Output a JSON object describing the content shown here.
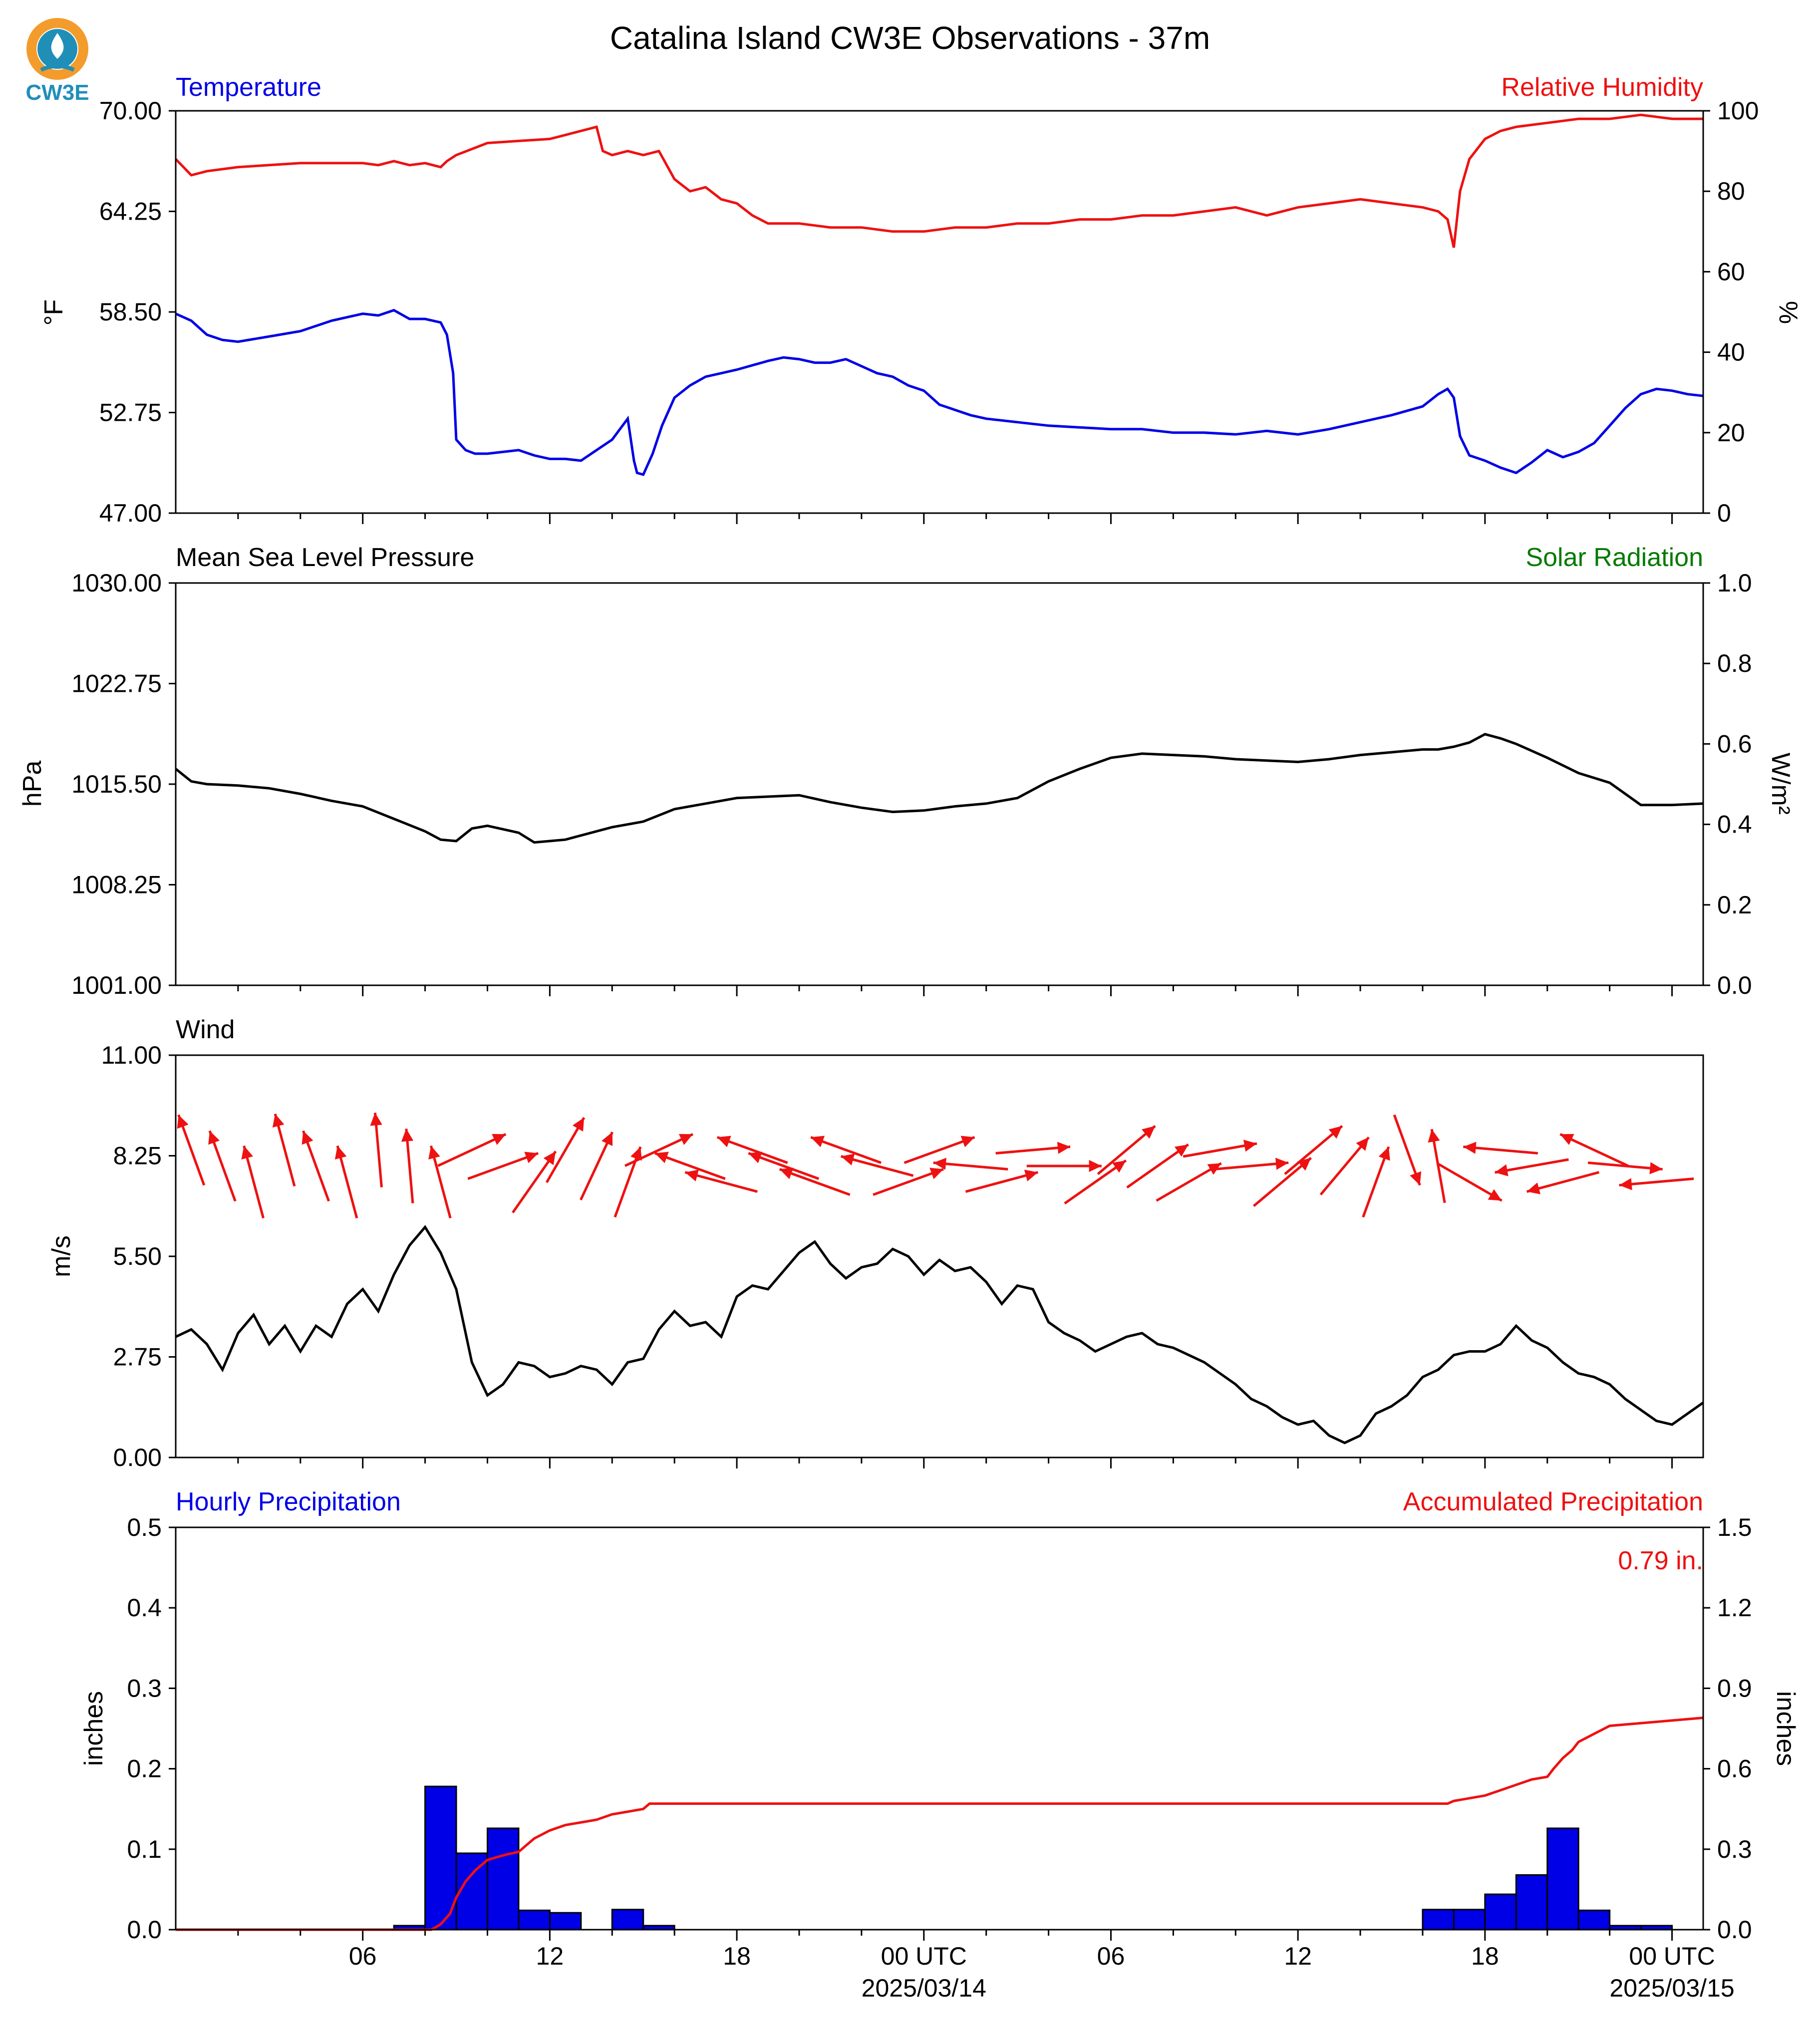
{
  "figure": {
    "title": "Catalina Island CW3E Observations - 37m",
    "logo_text": "CW3E",
    "colors": {
      "blue": "#0000e6",
      "red": "#ee1111",
      "green": "#007a00",
      "black": "#000000",
      "logo_orange": "#f39c2b",
      "logo_teal": "#1f8fb8"
    }
  },
  "time_axis": {
    "major_ticks": [
      {
        "h": 6,
        "label": "06",
        "sub": ""
      },
      {
        "h": 12,
        "label": "12",
        "sub": ""
      },
      {
        "h": 18,
        "label": "18",
        "sub": ""
      },
      {
        "h": 24,
        "label": "00 UTC",
        "sub": "2025/03/14"
      },
      {
        "h": 30,
        "label": "06",
        "sub": ""
      },
      {
        "h": 36,
        "label": "12",
        "sub": ""
      },
      {
        "h": 42,
        "label": "18",
        "sub": ""
      },
      {
        "h": 48,
        "label": "00 UTC",
        "sub": "2025/03/15"
      }
    ]
  },
  "chart_data": [
    {
      "type": "line",
      "id": "temp_rh",
      "title_left": "Temperature",
      "title_right": "Relative Humidity",
      "ylabel_left": "°F",
      "ylabel_right": "%",
      "ylim_left": [
        47.0,
        70.0
      ],
      "ylim_right": [
        0,
        100
      ],
      "yticks_left": [
        "47.00",
        "52.75",
        "58.50",
        "64.25",
        "70.00"
      ],
      "yticks_right": [
        "0",
        "20",
        "40",
        "60",
        "80",
        "100"
      ],
      "series": [
        {
          "name": "Temperature",
          "axis": "left",
          "color": "#0000e6",
          "x": [
            0,
            0.5,
            1,
            1.5,
            2,
            3,
            4,
            5,
            6,
            6.5,
            7,
            7.5,
            8,
            8.5,
            8.7,
            8.9,
            9.0,
            9.3,
            9.6,
            10,
            11,
            11.5,
            12,
            12.5,
            13,
            13.5,
            14,
            14.5,
            14.7,
            14.8,
            15.0,
            15.3,
            15.6,
            16,
            16.5,
            17,
            17.5,
            18,
            19,
            19.5,
            20,
            20.5,
            21,
            21.5,
            22,
            22.5,
            23,
            23.5,
            24,
            24.5,
            25,
            25.5,
            26,
            27,
            28,
            29,
            30,
            31,
            32,
            33,
            34,
            35,
            36,
            37,
            38,
            39,
            40,
            40.5,
            40.8,
            41.0,
            41.2,
            41.5,
            42,
            42.5,
            43,
            43.5,
            44,
            44.5,
            45,
            45.5,
            46,
            46.5,
            47,
            47.5,
            48,
            48.5,
            49
          ],
          "y": [
            58.4,
            58.0,
            57.2,
            56.9,
            56.8,
            57.1,
            57.4,
            58.0,
            58.4,
            58.3,
            58.6,
            58.1,
            58.1,
            57.9,
            57.2,
            55.0,
            51.2,
            50.6,
            50.4,
            50.4,
            50.6,
            50.3,
            50.1,
            50.1,
            50.0,
            50.6,
            51.2,
            52.4,
            50.0,
            49.3,
            49.2,
            50.4,
            52.0,
            53.6,
            54.3,
            54.8,
            55.0,
            55.2,
            55.7,
            55.9,
            55.8,
            55.6,
            55.6,
            55.8,
            55.4,
            55.0,
            54.8,
            54.3,
            54.0,
            53.2,
            52.9,
            52.6,
            52.4,
            52.2,
            52.0,
            51.9,
            51.8,
            51.8,
            51.6,
            51.6,
            51.5,
            51.7,
            51.5,
            51.8,
            52.2,
            52.6,
            53.1,
            53.8,
            54.1,
            53.6,
            51.4,
            50.3,
            50.0,
            49.6,
            49.3,
            49.9,
            50.6,
            50.2,
            50.5,
            51.0,
            52.0,
            53.0,
            53.8,
            54.1,
            54.0,
            53.8,
            53.7
          ]
        },
        {
          "name": "Relative Humidity",
          "axis": "right",
          "color": "#ee1111",
          "x": [
            0,
            0.5,
            1,
            2,
            3,
            4,
            5,
            6,
            6.5,
            7,
            7.5,
            8,
            8.5,
            8.7,
            9.0,
            10,
            11,
            12,
            12.5,
            13,
            13.5,
            13.7,
            14,
            14.5,
            15,
            15.5,
            16,
            16.5,
            17,
            17.5,
            18,
            18.5,
            19,
            20,
            21,
            22,
            23,
            24,
            25,
            26,
            27,
            28,
            29,
            30,
            31,
            32,
            33,
            34,
            35,
            36,
            37,
            38,
            39,
            40,
            40.5,
            40.8,
            41.0,
            41.2,
            41.5,
            42,
            42.5,
            43,
            44,
            45,
            46,
            47,
            48,
            49
          ],
          "y": [
            88,
            84,
            85,
            86,
            86.5,
            87,
            87,
            87,
            86.5,
            87.5,
            86.5,
            87,
            86,
            87.5,
            89,
            92,
            92.5,
            93,
            94,
            95,
            96,
            90,
            89,
            90,
            89,
            90,
            83,
            80,
            81,
            78,
            77,
            74,
            72,
            72,
            71,
            71,
            70,
            70,
            71,
            71,
            72,
            72,
            73,
            73,
            74,
            74,
            75,
            76,
            74,
            76,
            77,
            78,
            77,
            76,
            75,
            73,
            66,
            80,
            88,
            93,
            95,
            96,
            97,
            98,
            98,
            99,
            98,
            98
          ]
        }
      ]
    },
    {
      "type": "line",
      "id": "pressure",
      "title_left": "Mean Sea Level Pressure",
      "title_right": "Solar Radiation",
      "ylabel_left": "hPa",
      "ylabel_right": "W/m²",
      "ylim_left": [
        1001.0,
        1030.0
      ],
      "ylim_right": [
        0.0,
        1.0
      ],
      "yticks_left": [
        "1001.00",
        "1008.25",
        "1015.50",
        "1022.75",
        "1030.00"
      ],
      "yticks_right": [
        "0.0",
        "0.2",
        "0.4",
        "0.6",
        "0.8",
        "1.0"
      ],
      "series": [
        {
          "name": "Mean Sea Level Pressure",
          "axis": "left",
          "color": "#000000",
          "x": [
            0,
            0.5,
            1,
            2,
            3,
            4,
            5,
            6,
            7,
            8,
            8.5,
            9,
            9.5,
            10,
            11,
            11.5,
            12,
            12.5,
            13,
            14,
            15,
            16,
            17,
            18,
            19,
            20,
            21,
            22,
            23,
            24,
            25,
            26,
            27,
            28,
            29,
            30,
            31,
            32,
            33,
            34,
            35,
            36,
            37,
            38,
            39,
            40,
            40.5,
            41,
            41.5,
            42,
            42.5,
            43,
            44,
            45,
            46,
            47,
            48,
            49
          ],
          "y": [
            1016.6,
            1015.7,
            1015.5,
            1015.4,
            1015.2,
            1014.8,
            1014.3,
            1013.9,
            1013.0,
            1012.1,
            1011.5,
            1011.4,
            1012.3,
            1012.5,
            1012.0,
            1011.3,
            1011.4,
            1011.5,
            1011.8,
            1012.4,
            1012.8,
            1013.7,
            1014.1,
            1014.5,
            1014.6,
            1014.7,
            1014.2,
            1013.8,
            1013.5,
            1013.6,
            1013.9,
            1014.1,
            1014.5,
            1015.7,
            1016.6,
            1017.4,
            1017.7,
            1017.6,
            1017.5,
            1017.3,
            1017.2,
            1017.1,
            1017.3,
            1017.6,
            1017.8,
            1018.0,
            1018.0,
            1018.2,
            1018.5,
            1019.1,
            1018.8,
            1018.4,
            1017.4,
            1016.3,
            1015.6,
            1014.0,
            1014.0,
            1014.1
          ]
        }
      ]
    },
    {
      "type": "line",
      "id": "wind",
      "title_left": "Wind",
      "ylabel_left": "m/s",
      "ylim_left": [
        0.0,
        11.0
      ],
      "yticks_left": [
        "0.00",
        "2.75",
        "5.50",
        "8.25",
        "11.00"
      ],
      "series": [
        {
          "name": "Wind",
          "axis": "left",
          "color": "#000000",
          "x": [
            0,
            0.5,
            1,
            1.5,
            2,
            2.5,
            3,
            3.5,
            4,
            4.5,
            5,
            5.5,
            6,
            6.5,
            7,
            7.5,
            8,
            8.5,
            9,
            9.5,
            10,
            10.5,
            11,
            11.5,
            12,
            12.5,
            13,
            13.5,
            14,
            14.5,
            15,
            15.5,
            16,
            16.5,
            17,
            17.5,
            18,
            18.5,
            19,
            19.5,
            20,
            20.5,
            21,
            21.5,
            22,
            22.5,
            23,
            23.5,
            24,
            24.5,
            25,
            25.5,
            26,
            26.5,
            27,
            27.5,
            28,
            28.5,
            29,
            29.5,
            30,
            30.5,
            31,
            31.5,
            32,
            32.5,
            33,
            33.5,
            34,
            34.5,
            35,
            35.5,
            36,
            36.5,
            37,
            37.5,
            38,
            38.5,
            39,
            39.5,
            40,
            40.5,
            41,
            41.5,
            42,
            42.5,
            43,
            43.5,
            44,
            44.5,
            45,
            45.5,
            46,
            46.5,
            47,
            47.5,
            48,
            48.5,
            49
          ],
          "y": [
            3.3,
            3.5,
            3.1,
            2.4,
            3.4,
            3.9,
            3.1,
            3.6,
            2.9,
            3.6,
            3.3,
            4.2,
            4.6,
            4.0,
            5.0,
            5.8,
            6.3,
            5.6,
            4.6,
            2.6,
            1.7,
            2.0,
            2.6,
            2.5,
            2.2,
            2.3,
            2.5,
            2.4,
            2.0,
            2.6,
            2.7,
            3.5,
            4.0,
            3.6,
            3.7,
            3.3,
            4.4,
            4.7,
            4.6,
            5.1,
            5.6,
            5.9,
            5.3,
            4.9,
            5.2,
            5.3,
            5.7,
            5.5,
            5.0,
            5.4,
            5.1,
            5.2,
            4.8,
            4.2,
            4.7,
            4.6,
            3.7,
            3.4,
            3.2,
            2.9,
            3.1,
            3.3,
            3.4,
            3.1,
            3.0,
            2.8,
            2.6,
            2.3,
            2.0,
            1.6,
            1.4,
            1.1,
            0.9,
            1.0,
            0.6,
            0.4,
            0.6,
            1.2,
            1.4,
            1.7,
            2.2,
            2.4,
            2.8,
            2.9,
            2.9,
            3.1,
            3.6,
            3.2,
            3.0,
            2.6,
            2.3,
            2.2,
            2.0,
            1.6,
            1.3,
            1.0,
            0.9,
            1.2,
            1.5
          ]
        }
      ],
      "wind_arrows": {
        "color": "#ee1111",
        "x": [
          0.5,
          1.5,
          2.5,
          3.5,
          4.5,
          5.5,
          6.5,
          7.5,
          8.5,
          9.5,
          10.5,
          11.5,
          12.5,
          13.5,
          14.5,
          15.5,
          16.5,
          17.5,
          18.5,
          19.5,
          20.5,
          21.5,
          22.5,
          23.5,
          24.5,
          25.5,
          26.5,
          27.5,
          28.5,
          29.5,
          30.5,
          31.5,
          32.5,
          33.5,
          34.5,
          35.5,
          36.5,
          37.5,
          38.5,
          39.5,
          40.5,
          41.5,
          42.5,
          43.5,
          44.5,
          45.5,
          46.5,
          47.5
        ],
        "dir_deg": [
          160,
          160,
          165,
          165,
          160,
          165,
          175,
          175,
          165,
          245,
          250,
          215,
          210,
          205,
          200,
          245,
          110,
          105,
          110,
          110,
          110,
          110,
          105,
          250,
          250,
          95,
          255,
          265,
          270,
          235,
          230,
          235,
          240,
          260,
          265,
          230,
          230,
          220,
          200,
          340,
          170,
          300,
          95,
          80,
          75,
          115,
          275,
          85
        ],
        "speed": [
          2.0,
          2.0,
          2.0,
          2.0,
          2.0,
          2.0,
          2.0,
          2.0,
          2.0,
          2.0,
          2.0,
          2.0,
          2.0,
          2.0,
          2.0,
          2.0,
          2.0,
          2.0,
          2.0,
          2.0,
          2.0,
          2.0,
          2.0,
          2.0,
          2.0,
          2.0,
          2.0,
          2.0,
          2.0,
          2.0,
          2.0,
          2.0,
          2.0,
          2.0,
          2.0,
          2.0,
          2.0,
          2.0,
          2.0,
          2.0,
          2.0,
          2.0,
          2.0,
          2.0,
          2.0,
          2.0,
          2.0,
          2.0
        ]
      }
    },
    {
      "type": "bar",
      "id": "precip",
      "title_left": "Hourly Precipitation",
      "title_right": "Accumulated Precipitation",
      "annotation": "0.79 in.",
      "ylabel_left": "inches",
      "ylabel_right": "inches",
      "ylim_left": [
        0.0,
        0.5
      ],
      "ylim_right": [
        0.0,
        1.5
      ],
      "yticks_left": [
        "0.0",
        "0.1",
        "0.2",
        "0.3",
        "0.4",
        "0.5"
      ],
      "yticks_right": [
        "0.0",
        "0.3",
        "0.6",
        "0.9",
        "1.2",
        "1.5"
      ],
      "bars": {
        "name": "Hourly Precipitation",
        "color": "#0000e6",
        "hour_start": [
          7,
          8,
          9,
          10,
          11,
          12,
          13,
          14,
          15,
          16,
          40,
          41,
          42,
          43,
          44,
          45,
          46,
          47
        ],
        "values": [
          0.005,
          0.178,
          0.095,
          0.126,
          0.024,
          0.021,
          0.0,
          0.025,
          0.005,
          0.0,
          0.025,
          0.025,
          0.044,
          0.068,
          0.126,
          0.024,
          0.005,
          0.005
        ]
      },
      "series": [
        {
          "name": "Accumulated Precipitation",
          "axis": "right",
          "color": "#ee1111",
          "x": [
            0,
            8.2,
            8.5,
            8.8,
            9.0,
            9.3,
            9.6,
            10.0,
            10.3,
            10.6,
            11.0,
            11.2,
            11.5,
            12.0,
            12.5,
            13.0,
            13.5,
            14.0,
            14.5,
            15.0,
            15.2,
            16.0,
            20.0,
            30.0,
            40.0,
            40.8,
            41.0,
            41.5,
            42.0,
            42.5,
            43.0,
            43.5,
            44.0,
            44.2,
            44.5,
            44.8,
            45.0,
            45.5,
            46.0,
            47.0,
            48.0,
            49.0
          ],
          "y": [
            0.0,
            0.0,
            0.02,
            0.06,
            0.12,
            0.18,
            0.22,
            0.26,
            0.27,
            0.28,
            0.29,
            0.31,
            0.34,
            0.37,
            0.39,
            0.4,
            0.41,
            0.43,
            0.44,
            0.45,
            0.47,
            0.47,
            0.47,
            0.47,
            0.47,
            0.47,
            0.48,
            0.49,
            0.5,
            0.52,
            0.54,
            0.56,
            0.57,
            0.6,
            0.64,
            0.67,
            0.7,
            0.73,
            0.76,
            0.77,
            0.78,
            0.79
          ]
        }
      ]
    }
  ]
}
